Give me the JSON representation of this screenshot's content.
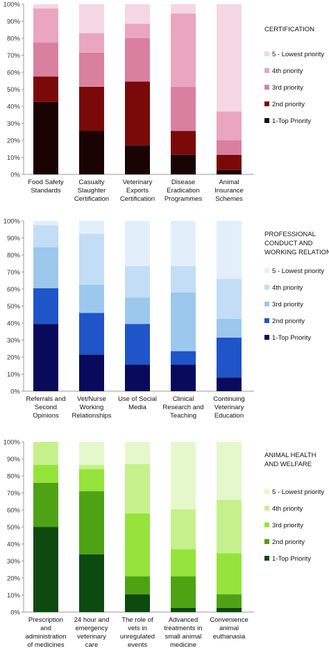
{
  "chart_data": [
    {
      "type": "bar",
      "stacked": true,
      "title": "CERTIFICATION",
      "ylim": [
        0,
        100
      ],
      "yticks": [
        "0%",
        "10%",
        "20%",
        "30%",
        "40%",
        "50%",
        "60%",
        "70%",
        "80%",
        "90%",
        "100%"
      ],
      "categories": [
        [
          "Food Safety",
          "Standards"
        ],
        [
          "Casualty",
          "Slaughter",
          "Certification"
        ],
        [
          "Veterinary",
          "Exports",
          "Certification"
        ],
        [
          "Disease",
          "Eradication",
          "Programmes"
        ],
        [
          "Animal",
          "Insurance",
          "Schemes"
        ]
      ],
      "series": [
        {
          "name": "1-Top Priority",
          "color": "#1a0303",
          "values": [
            42.5,
            25.5,
            17,
            11.5,
            2.5
          ]
        },
        {
          "name": "2nd priority",
          "color": "#7a0a0a",
          "values": [
            15,
            26,
            37.5,
            14,
            9
          ]
        },
        {
          "name": "3rd priority",
          "color": "#d9809f",
          "values": [
            20,
            20,
            25.5,
            26,
            8.5
          ]
        },
        {
          "name": "4th priority",
          "color": "#eaa6bf",
          "values": [
            20,
            11.5,
            8.5,
            43,
            17
          ]
        },
        {
          "name": "5 - Lowest priority",
          "color": "#f4d7e2",
          "values": [
            2.5,
            17,
            11.5,
            5.5,
            63
          ]
        }
      ],
      "legend": [
        "5 - Lowest priority",
        "4th priority",
        "3rd priority",
        "2nd priority",
        "1-Top Priority"
      ],
      "legend_position": "right"
    },
    {
      "type": "bar",
      "stacked": true,
      "title": "PROFESSIONAL CONDUCT AND WORKING RELATIONS",
      "title_lines": [
        "PROFESSIONAL",
        "CONDUCT AND",
        "WORKING RELATIONS"
      ],
      "ylim": [
        0,
        100
      ],
      "yticks": [
        "0%",
        "10%",
        "20%",
        "30%",
        "40%",
        "50%",
        "60%",
        "70%",
        "80%",
        "90%",
        "100%"
      ],
      "categories": [
        [
          "Referrals and",
          "Second",
          "Opinions"
        ],
        [
          "Vet/Nurse",
          "Working",
          "Relationships"
        ],
        [
          "Use of Social",
          "Media"
        ],
        [
          "Clinical",
          "Research and",
          "Teaching"
        ],
        [
          "Continuing",
          "Veterinary",
          "Education"
        ]
      ],
      "series": [
        {
          "name": "1-Top Priority",
          "color": "#0a0a5c",
          "values": [
            39.5,
            21.5,
            15.5,
            15.5,
            8
          ]
        },
        {
          "name": "2nd priority",
          "color": "#1f55c8",
          "values": [
            21,
            24.5,
            24,
            8,
            23.5
          ]
        },
        {
          "name": "3rd priority",
          "color": "#9cc8ee",
          "values": [
            24,
            16.5,
            15.5,
            34.5,
            11
          ]
        },
        {
          "name": "4th priority",
          "color": "#c2ddf5",
          "values": [
            13,
            30,
            18.5,
            15.5,
            23.5
          ]
        },
        {
          "name": "5 - Lowest priority",
          "color": "#e2effa",
          "values": [
            2.5,
            7.5,
            26.5,
            26.5,
            34
          ]
        }
      ],
      "legend": [
        "5 - Lowest priority",
        "4th priority",
        "3rd priority",
        "2nd priority",
        "1-Top Priority"
      ],
      "legend_position": "right"
    },
    {
      "type": "bar",
      "stacked": true,
      "title": "ANIMAL HEALTH AND WELFARE",
      "title_lines": [
        "ANIMAL HEALTH",
        "AND WELFARE"
      ],
      "ylim": [
        0,
        100
      ],
      "yticks": [
        "0%",
        "10%",
        "20%",
        "30%",
        "40%",
        "50%",
        "60%",
        "70%",
        "80%",
        "90%",
        "100%"
      ],
      "categories": [
        [
          "Prescription",
          "and",
          "administration",
          "of medicines"
        ],
        [
          "24 hour and",
          "emergency",
          "veterinary",
          "care"
        ],
        [
          "The role of",
          "vets in",
          "unregulated",
          "events"
        ],
        [
          "Advanced",
          "treatments in",
          "small animal",
          "medicine"
        ],
        [
          "Convenience",
          "animal",
          "euthanasia"
        ]
      ],
      "series": [
        {
          "name": "1-Top Priority",
          "color": "#0d4a10",
          "values": [
            50,
            34,
            10.5,
            2.5,
            2.5
          ]
        },
        {
          "name": "2nd priority",
          "color": "#4ea315",
          "values": [
            26,
            37,
            10.5,
            18.5,
            8
          ]
        },
        {
          "name": "3rd priority",
          "color": "#96e33c",
          "values": [
            10.5,
            13,
            37,
            16,
            24
          ]
        },
        {
          "name": "4th priority",
          "color": "#c6f08c",
          "values": [
            13.5,
            2.5,
            29,
            23.5,
            31.5
          ]
        },
        {
          "name": "5 - Lowest priority",
          "color": "#e5f8cc",
          "values": [
            0,
            13.5,
            13,
            39.5,
            34
          ]
        }
      ],
      "legend": [
        "5 - Lowest priority",
        "4th priority",
        "3rd priority",
        "2nd priority",
        "1-Top Priority"
      ],
      "legend_position": "right"
    }
  ]
}
